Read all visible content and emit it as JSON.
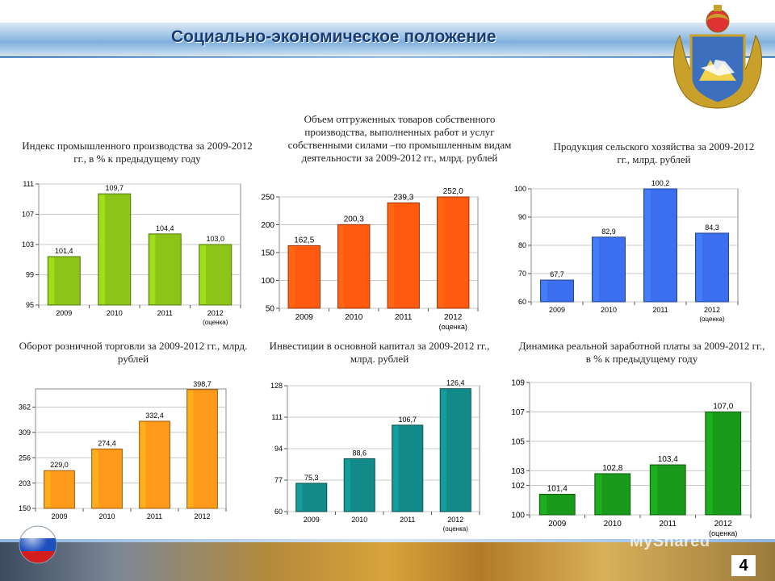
{
  "header": {
    "title": "Социально-экономическое положение"
  },
  "page_number": "4",
  "watermark": "MyShared",
  "chart_data": [
    {
      "id": "c1",
      "type": "bar",
      "title": "Индекс промышленного производства за 2009-2012 гг., в % к предыдущему году",
      "categories": [
        "2009",
        "2010",
        "2011",
        "2012"
      ],
      "category_sub": [
        "",
        "",
        "",
        "(оценка)"
      ],
      "values": [
        101.4,
        109.7,
        104.4,
        103.0
      ],
      "value_labels": [
        "101,4",
        "109,7",
        "104,4",
        "103,0"
      ],
      "yticks": [
        95,
        99,
        103,
        107,
        111
      ],
      "ytick_labels": [
        "95",
        "99",
        "103",
        "107",
        "111"
      ],
      "ylim": [
        95,
        111
      ],
      "grid": true,
      "color": "#8cc418"
    },
    {
      "id": "c2",
      "type": "bar",
      "title": "Объем отгруженных товаров собственного производства, выполненных работ и услуг собственными силами –по промышленным видам деятельности за 2009-2012 гг., млрд. рублей",
      "categories": [
        "2009",
        "2010",
        "2011",
        "2012"
      ],
      "category_sub": [
        "",
        "",
        "",
        "(оценка)"
      ],
      "values": [
        162.5,
        200.3,
        239.3,
        252.0
      ],
      "value_labels": [
        "162,5",
        "200,3",
        "239,3",
        "252,0"
      ],
      "yticks": [
        50,
        100,
        150,
        200,
        250
      ],
      "ytick_labels": [
        "50",
        "100",
        "150",
        "200",
        "250"
      ],
      "ylim": [
        50,
        250
      ],
      "grid": true,
      "color": "#ff5a10"
    },
    {
      "id": "c3",
      "type": "bar",
      "title": "Продукция сельского хозяйства за 2009-2012 гг., млрд. рублей",
      "categories": [
        "2009",
        "2010",
        "2011",
        "2012"
      ],
      "category_sub": [
        "",
        "",
        "",
        "(оценка)"
      ],
      "values": [
        67.7,
        82.9,
        100.2,
        84.3
      ],
      "value_labels": [
        "67,7",
        "82,9",
        "100,2",
        "84,3"
      ],
      "yticks": [
        60,
        70,
        80,
        90,
        100
      ],
      "ytick_labels": [
        "60",
        "70",
        "80",
        "90",
        "100"
      ],
      "ylim": [
        60,
        100
      ],
      "grid": true,
      "color": "#3c6ef0"
    },
    {
      "id": "c4",
      "type": "bar",
      "title": "Оборот розничной торговли за 2009-2012 гг., млрд. рублей",
      "categories": [
        "2009",
        "2010",
        "2011",
        "2012"
      ],
      "category_sub": [
        "",
        "",
        "",
        ""
      ],
      "values": [
        229.0,
        274.4,
        332.4,
        398.7
      ],
      "value_labels": [
        "229,0",
        "274,4",
        "332,4",
        "398,7"
      ],
      "yticks": [
        150,
        203,
        256,
        309,
        362
      ],
      "ytick_labels": [
        "150",
        "203",
        "256",
        "309",
        "362"
      ],
      "ylim": [
        150,
        400
      ],
      "grid": true,
      "color": "#ff9a1a"
    },
    {
      "id": "c5",
      "type": "bar",
      "title": "Инвестиции в основной капитал за 2009-2012 гг., млрд. рублей",
      "categories": [
        "2009",
        "2010",
        "2011",
        "2012"
      ],
      "category_sub": [
        "",
        "",
        "",
        "(оценка)"
      ],
      "values": [
        75.3,
        88.6,
        106.7,
        126.4
      ],
      "value_labels": [
        "75,3",
        "88,6",
        "106,7",
        "126,4"
      ],
      "yticks": [
        60,
        77,
        94,
        111,
        128
      ],
      "ytick_labels": [
        "60",
        "77",
        "94",
        "111",
        "128"
      ],
      "ylim": [
        60,
        128
      ],
      "grid": true,
      "color": "#128a8a"
    },
    {
      "id": "c6",
      "type": "bar",
      "title": "Динамика реальной заработной платы за 2009-2012 гг., в % к предыдущему году",
      "categories": [
        "2009",
        "2010",
        "2011",
        "2012"
      ],
      "category_sub": [
        "",
        "",
        "",
        "(оценка)"
      ],
      "values": [
        101.4,
        102.8,
        103.4,
        107.0
      ],
      "value_labels": [
        "101,4",
        "102,8",
        "103,4",
        "107,0"
      ],
      "yticks": [
        100,
        102,
        103,
        105,
        107,
        109
      ],
      "ytick_labels": [
        "100",
        "102",
        "103",
        "105",
        "107",
        "109"
      ],
      "ylim": [
        100,
        109
      ],
      "grid": true,
      "color": "#1a9a1a"
    }
  ]
}
